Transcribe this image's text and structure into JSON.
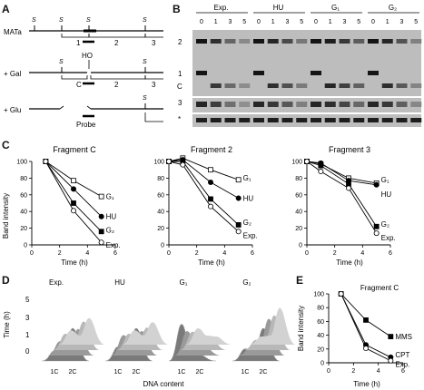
{
  "panel_letters": {
    "a": "A",
    "b": "B",
    "c": "C",
    "d": "D",
    "e": "E"
  },
  "panel_a": {
    "rows": [
      {
        "label": "MATa",
        "s_marks": [
          "S",
          "S",
          "S",
          "S"
        ],
        "fragments": [
          "1",
          "2",
          "3"
        ]
      },
      {
        "label": "+ Gal",
        "cut_label": "HO",
        "s_marks": [
          "S",
          "S"
        ],
        "fragments": [
          "C",
          "2",
          "3"
        ]
      },
      {
        "label": "+ Glu",
        "s_marks": [
          "S"
        ],
        "probe_label": "Probe"
      }
    ]
  },
  "panel_b": {
    "groups": [
      "Exp.",
      "HU",
      "G₁",
      "G₂"
    ],
    "timepoints": [
      "0",
      "1",
      "3",
      "5"
    ],
    "lane_labels": [
      "2",
      "1",
      "C",
      "3",
      "*"
    ]
  },
  "panel_c": {
    "x_label": "Time (h)",
    "y_label": "Band intensity",
    "charts": [
      {
        "title": "Fragment C",
        "series_labels": [
          "G₁",
          "HU",
          "G₂",
          "Exp."
        ]
      },
      {
        "title": "Fragment 2",
        "series_labels": [
          "G₁",
          "HU",
          "G₂",
          "Exp."
        ]
      },
      {
        "title": "Fragment 3",
        "series_labels": [
          "G₁",
          "HU",
          "G₂",
          "Exp."
        ]
      }
    ]
  },
  "panel_d": {
    "titles": [
      "Exp.",
      "HU",
      "G₁",
      "G₂"
    ],
    "y_label": "Time (h)",
    "y_ticks": [
      "5",
      "3",
      "1",
      "0"
    ],
    "x_ticks": [
      "1C",
      "2C"
    ],
    "x_label": "DNA content"
  },
  "panel_e": {
    "title": "Fragment C",
    "x_label": "Time (h)",
    "y_label": "Band intensity",
    "series_labels": [
      "MMS",
      "CPT",
      "Exp."
    ]
  },
  "chart_data": [
    {
      "type": "line",
      "title": "Fragment C",
      "xlabel": "Time (h)",
      "ylabel": "Band intensity",
      "xlim": [
        0,
        6
      ],
      "ylim": [
        0,
        100
      ],
      "xticks": [
        0,
        2,
        4,
        6
      ],
      "yticks": [
        0,
        20,
        40,
        60,
        80,
        100
      ],
      "series": [
        {
          "name": "G₁",
          "marker": "open-square",
          "x": [
            1,
            3,
            5
          ],
          "y": [
            100,
            77,
            58
          ]
        },
        {
          "name": "HU",
          "marker": "filled-circle",
          "x": [
            1,
            3,
            5
          ],
          "y": [
            100,
            67,
            34
          ]
        },
        {
          "name": "G₂",
          "marker": "filled-square",
          "x": [
            1,
            3,
            5
          ],
          "y": [
            100,
            50,
            16
          ]
        },
        {
          "name": "Exp.",
          "marker": "open-circle",
          "x": [
            1,
            3,
            5
          ],
          "y": [
            100,
            41,
            3
          ]
        }
      ]
    },
    {
      "type": "line",
      "title": "Fragment 2",
      "xlabel": "Time (h)",
      "ylabel": "Band intensity",
      "xlim": [
        0,
        6
      ],
      "ylim": [
        0,
        100
      ],
      "xticks": [
        0,
        2,
        4,
        6
      ],
      "yticks": [
        0,
        20,
        40,
        60,
        80,
        100
      ],
      "series": [
        {
          "name": "G₁",
          "marker": "open-square",
          "x": [
            0,
            1,
            3,
            5
          ],
          "y": [
            100,
            104,
            90,
            78
          ]
        },
        {
          "name": "HU",
          "marker": "filled-circle",
          "x": [
            0,
            1,
            3,
            5
          ],
          "y": [
            100,
            102,
            75,
            56
          ]
        },
        {
          "name": "G₂",
          "marker": "filled-square",
          "x": [
            0,
            1,
            3,
            5
          ],
          "y": [
            100,
            100,
            55,
            24
          ]
        },
        {
          "name": "Exp.",
          "marker": "open-circle",
          "x": [
            0,
            1,
            3,
            5
          ],
          "y": [
            100,
            96,
            46,
            16
          ]
        }
      ]
    },
    {
      "type": "line",
      "title": "Fragment 3",
      "xlabel": "Time (h)",
      "ylabel": "Band intensity",
      "xlim": [
        0,
        6
      ],
      "ylim": [
        0,
        100
      ],
      "xticks": [
        0,
        2,
        4,
        6
      ],
      "yticks": [
        0,
        20,
        40,
        60,
        80,
        100
      ],
      "series": [
        {
          "name": "G₁",
          "marker": "open-square",
          "x": [
            0,
            1,
            3,
            5
          ],
          "y": [
            100,
            97,
            80,
            74
          ]
        },
        {
          "name": "HU",
          "marker": "filled-circle",
          "x": [
            0,
            1,
            3,
            5
          ],
          "y": [
            100,
            98,
            77,
            72
          ]
        },
        {
          "name": "G₂",
          "marker": "filled-square",
          "x": [
            0,
            1,
            3,
            5
          ],
          "y": [
            100,
            95,
            73,
            22
          ]
        },
        {
          "name": "Exp.",
          "marker": "open-circle",
          "x": [
            0,
            1,
            3,
            5
          ],
          "y": [
            100,
            88,
            68,
            14
          ]
        }
      ]
    },
    {
      "type": "line",
      "title": "Fragment C",
      "xlabel": "Time (h)",
      "ylabel": "Band intensity",
      "xlim": [
        0,
        6
      ],
      "ylim": [
        0,
        100
      ],
      "xticks": [
        0,
        2,
        4,
        6
      ],
      "yticks": [
        0,
        20,
        40,
        60,
        80,
        100
      ],
      "series": [
        {
          "name": "MMS",
          "marker": "filled-square",
          "x": [
            1,
            3,
            5
          ],
          "y": [
            100,
            62,
            38
          ]
        },
        {
          "name": "CPT",
          "marker": "filled-circle",
          "x": [
            1,
            3,
            5
          ],
          "y": [
            100,
            26,
            8
          ]
        },
        {
          "name": "Exp.",
          "marker": "open-circle",
          "x": [
            1,
            3,
            5
          ],
          "y": [
            100,
            21,
            3
          ]
        }
      ]
    }
  ]
}
